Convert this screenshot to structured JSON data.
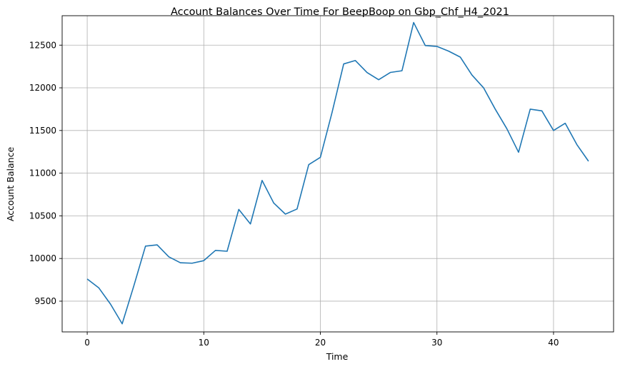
{
  "chart_data": {
    "type": "line",
    "title": "Account Balances Over Time For BeepBoop on Gbp_Chf_H4_2021",
    "xlabel": "Time",
    "ylabel": "Account Balance",
    "xlim": [
      -2.15,
      45.15
    ],
    "ylim": [
      9140,
      12845
    ],
    "xticks": [
      0,
      10,
      20,
      30,
      40
    ],
    "yticks": [
      9500,
      10000,
      10500,
      11000,
      11500,
      12000,
      12500
    ],
    "grid": true,
    "series": [
      {
        "color": "#1f77b4",
        "x": [
          0,
          1,
          2,
          3,
          4,
          5,
          6,
          7,
          8,
          9,
          10,
          11,
          12,
          13,
          14,
          15,
          16,
          17,
          18,
          19,
          20,
          21,
          22,
          23,
          24,
          25,
          26,
          27,
          28,
          29,
          30,
          31,
          32,
          33,
          34,
          35,
          36,
          37,
          38,
          39,
          40,
          41,
          42,
          43
        ],
        "values": [
          9760,
          9655,
          9465,
          9235,
          9680,
          10145,
          10160,
          10020,
          9950,
          9945,
          9975,
          10095,
          10085,
          10575,
          10405,
          10915,
          10650,
          10520,
          10580,
          11100,
          11185,
          11710,
          12280,
          12320,
          12180,
          12095,
          12180,
          12200,
          12765,
          12495,
          12485,
          12430,
          12360,
          12150,
          12000,
          11750,
          11520,
          11245,
          11750,
          11730,
          11500,
          11585,
          11335,
          11140
        ]
      }
    ]
  }
}
